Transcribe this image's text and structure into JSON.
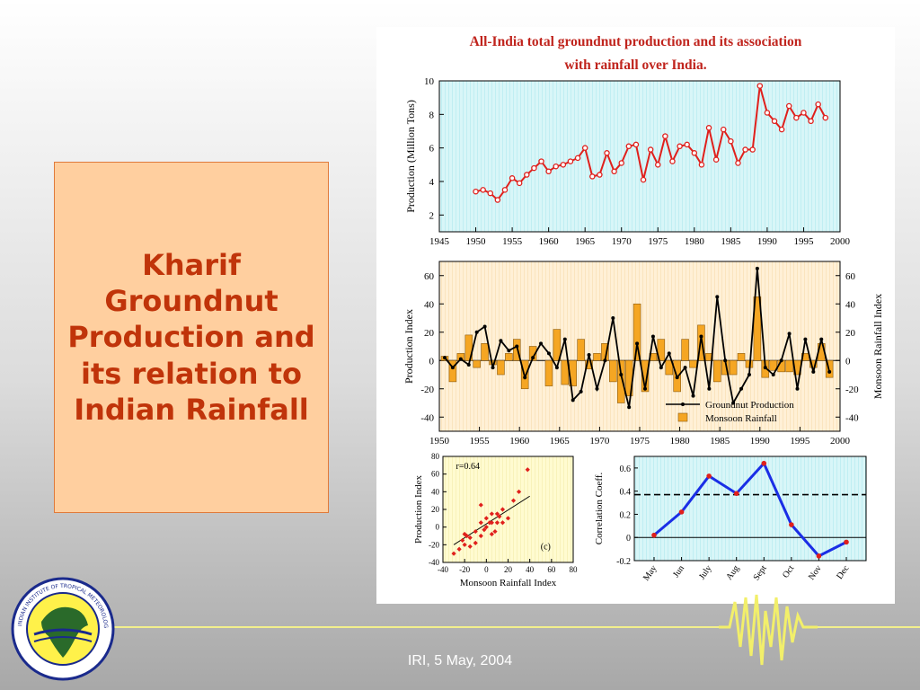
{
  "slide": {
    "title": "Kharif Groundnut Production and its relation to Indian Rainfall",
    "footer": "IRI, 5 May, 2004",
    "logo_text": "INDIAN INSTITUTE OF TROPICAL METEOROLOGY PUNE"
  },
  "figure": {
    "title_line1": "All-India total groundnut production and its association",
    "title_line2": "with rainfall over India."
  },
  "colors": {
    "title_text": "#c0340a",
    "title_box": "#ffcf9f",
    "production_line": "#e0201c",
    "index_line": "#000000",
    "rainfall_bars": "#f5a623",
    "correlation_line": "#1a2ee6",
    "correlation_points": "#e0201c"
  },
  "chart_data": [
    {
      "type": "line",
      "xlabel": "",
      "ylabel": "Production (Million Tons)",
      "xlim": [
        1945,
        2000
      ],
      "ylim": [
        1,
        10
      ],
      "xticks": [
        1945,
        1950,
        1955,
        1960,
        1965,
        1970,
        1975,
        1980,
        1985,
        1990,
        1995,
        2000
      ],
      "yticks": [
        2,
        4,
        6,
        8,
        10
      ],
      "x": [
        1950,
        1951,
        1952,
        1953,
        1954,
        1955,
        1956,
        1957,
        1958,
        1959,
        1960,
        1961,
        1962,
        1963,
        1964,
        1965,
        1966,
        1967,
        1968,
        1969,
        1970,
        1971,
        1972,
        1973,
        1974,
        1975,
        1976,
        1977,
        1978,
        1979,
        1980,
        1981,
        1982,
        1983,
        1984,
        1985,
        1986,
        1987,
        1988,
        1989,
        1990,
        1991,
        1992,
        1993,
        1994,
        1995,
        1996,
        1997,
        1998
      ],
      "series": [
        {
          "values": [
            3.4,
            3.5,
            3.3,
            2.9,
            3.5,
            4.2,
            3.9,
            4.4,
            4.8,
            5.2,
            4.6,
            4.9,
            5.0,
            5.2,
            5.4,
            6.0,
            4.3,
            4.4,
            5.7,
            4.6,
            5.1,
            6.1,
            6.2,
            4.1,
            5.9,
            5.0,
            6.7,
            5.2,
            6.1,
            6.2,
            5.7,
            5.0,
            7.2,
            5.3,
            7.1,
            6.4,
            5.1,
            5.9,
            5.9,
            9.7,
            8.1,
            7.6,
            7.1,
            8.5,
            7.8,
            8.1,
            7.6,
            8.6,
            7.8
          ]
        }
      ]
    },
    {
      "type": "bar",
      "xlabel": "",
      "ylabel": "Production Index",
      "ylabel_right": "Monsoon Rainfall Index",
      "xlim": [
        1950,
        2000
      ],
      "ylim": [
        -50,
        70
      ],
      "xticks": [
        1950,
        1955,
        1960,
        1965,
        1970,
        1975,
        1980,
        1985,
        1990,
        1995,
        2000
      ],
      "yticks": [
        -40,
        -20,
        0,
        20,
        40,
        60
      ],
      "legend": [
        "Groundnut Production",
        "Monsoon Rainfall"
      ],
      "legend_position": "bottom-right",
      "x": [
        1950,
        1951,
        1952,
        1953,
        1954,
        1955,
        1956,
        1957,
        1958,
        1959,
        1960,
        1961,
        1962,
        1963,
        1964,
        1965,
        1966,
        1967,
        1968,
        1969,
        1970,
        1971,
        1972,
        1973,
        1974,
        1975,
        1976,
        1977,
        1978,
        1979,
        1980,
        1981,
        1982,
        1983,
        1984,
        1985,
        1986,
        1987,
        1988,
        1989,
        1990,
        1991,
        1992,
        1993,
        1994,
        1995,
        1996,
        1997,
        1998
      ],
      "series": [
        {
          "name": "Monsoon Rainfall",
          "values": [
            3,
            -15,
            5,
            18,
            -5,
            12,
            -3,
            -10,
            5,
            15,
            -20,
            10,
            0,
            -18,
            22,
            -17,
            -18,
            15,
            -6,
            5,
            12,
            -15,
            -30,
            -25,
            40,
            -22,
            5,
            15,
            -10,
            -22,
            15,
            -5,
            25,
            5,
            -15,
            -10,
            -10,
            5,
            -5,
            45,
            -12,
            -7,
            -8,
            -8,
            -10,
            5,
            -5,
            12,
            -12
          ]
        },
        {
          "name": "Groundnut Production",
          "values": [
            2,
            -5,
            1,
            -3,
            20,
            24,
            -5,
            14,
            7,
            10,
            -12,
            2,
            12,
            5,
            -5,
            15,
            -28,
            -22,
            4,
            -20,
            0,
            30,
            -10,
            -33,
            12,
            -20,
            17,
            -5,
            5,
            -12,
            -5,
            -25,
            17,
            -20,
            45,
            0,
            -30,
            -20,
            -10,
            65,
            -5,
            -10,
            0,
            19,
            -20,
            15,
            -8,
            15,
            -8
          ]
        }
      ]
    },
    {
      "type": "scatter",
      "xlabel": "Monsoon Rainfall Index",
      "ylabel": "Production Index",
      "annotation": "r=0.64",
      "panel_label": "(c)",
      "xlim": [
        -40,
        80
      ],
      "ylim": [
        -40,
        80
      ],
      "xticks": [
        -40,
        -20,
        0,
        20,
        40,
        60,
        80
      ],
      "yticks": [
        -40,
        -20,
        0,
        20,
        40,
        60,
        80
      ],
      "x": [
        -30,
        -25,
        -20,
        -22,
        -18,
        -15,
        -10,
        -10,
        -5,
        -5,
        -2,
        0,
        0,
        3,
        5,
        5,
        5,
        8,
        10,
        12,
        15,
        15,
        -15,
        -20,
        -5,
        10,
        20,
        25,
        30,
        38
      ],
      "y": [
        -30,
        -25,
        -20,
        -15,
        -10,
        -22,
        -5,
        -18,
        5,
        -10,
        -3,
        0,
        10,
        5,
        5,
        15,
        -8,
        -5,
        15,
        12,
        20,
        5,
        -12,
        -8,
        25,
        5,
        10,
        30,
        40,
        65
      ]
    },
    {
      "type": "line",
      "xlabel": "",
      "ylabel": "Correlation Coeff.",
      "categories": [
        "May",
        "Jun",
        "July",
        "Aug",
        "Sept",
        "Oct",
        "Nov",
        "Dec"
      ],
      "ylim": [
        -0.2,
        0.7
      ],
      "yticks": [
        -0.2,
        0,
        0.2,
        0.4,
        0.6
      ],
      "reference_line": 0.37,
      "series": [
        {
          "values": [
            0.02,
            0.22,
            0.53,
            0.38,
            0.64,
            0.11,
            -0.16,
            -0.04
          ]
        }
      ]
    }
  ]
}
